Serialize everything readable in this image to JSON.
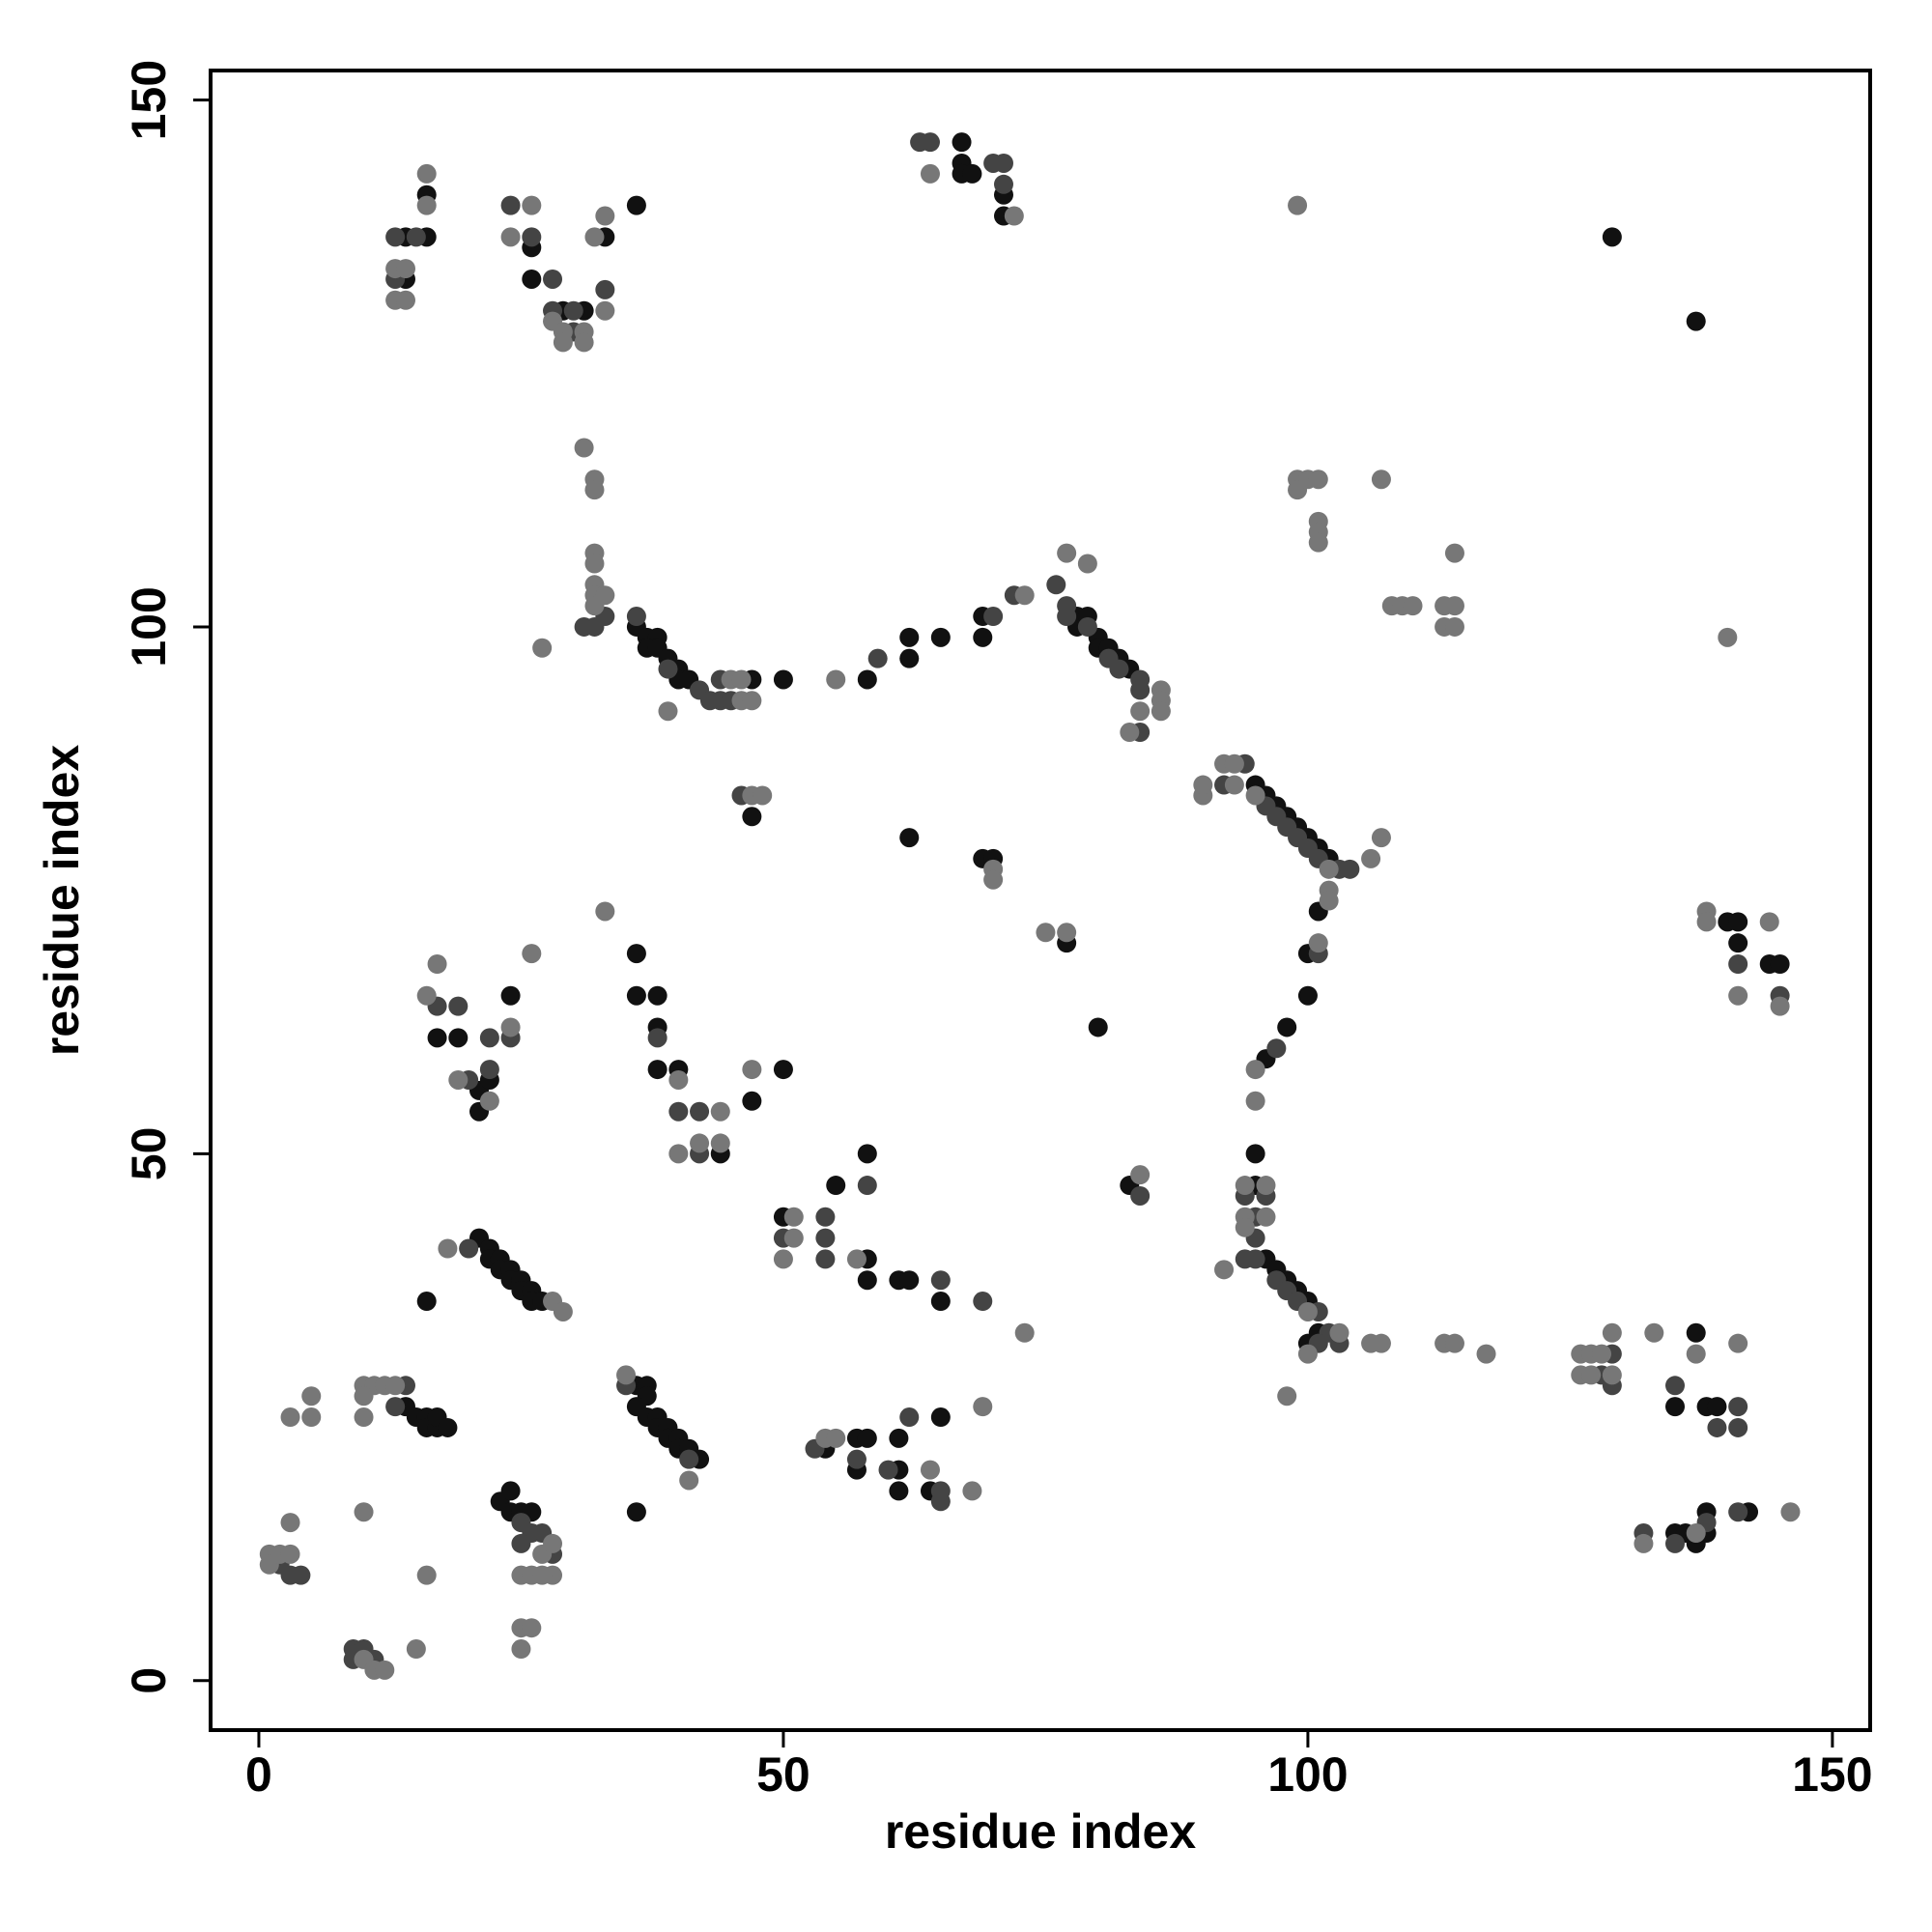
{
  "chart_data": {
    "type": "scatter",
    "xlabel": "residue index",
    "ylabel": "residue index",
    "xlim": [
      -4.6,
      153.6
    ],
    "ylim": [
      -4.7,
      152.8
    ],
    "xticks": [
      0,
      50,
      100,
      150
    ],
    "yticks": [
      0,
      50,
      100,
      150
    ],
    "grid": false,
    "series": [
      {
        "color": "#111111",
        "x": [
          14,
          15,
          16,
          16,
          17,
          17,
          18,
          23,
          24,
          24,
          25,
          26,
          21,
          22,
          22,
          23,
          23,
          24,
          24,
          25,
          25,
          26,
          26,
          27,
          16,
          36,
          37,
          37,
          36,
          37,
          38,
          38,
          39,
          39,
          40,
          40,
          41,
          42,
          36,
          17,
          19,
          21,
          21,
          22,
          24,
          36,
          36,
          38,
          38,
          38,
          40,
          44,
          47,
          50,
          36,
          37,
          38,
          37,
          38,
          39,
          40,
          40,
          41,
          47,
          50,
          47,
          58,
          62,
          62,
          65,
          69,
          69,
          78,
          78,
          79,
          80,
          80,
          81,
          82,
          83,
          62,
          69,
          70,
          77,
          80,
          95,
          96,
          97,
          98,
          99,
          100,
          101,
          102,
          101,
          100,
          100,
          98,
          96,
          95,
          95,
          96,
          97,
          98,
          99,
          100,
          100,
          101,
          83,
          50,
          55,
          58,
          58,
          58,
          61,
          62,
          65,
          54,
          57,
          58,
          57,
          61,
          61,
          61,
          65,
          64,
          129,
          137,
          140,
          141,
          141,
          144,
          145,
          137,
          135,
          138,
          139,
          135,
          136,
          137,
          138,
          138,
          142,
          67,
          67,
          67,
          68,
          71,
          71,
          16,
          16,
          14,
          14,
          26,
          26,
          33,
          36,
          29,
          31
        ],
        "y": [
          26,
          25,
          25,
          24,
          24,
          25,
          24,
          17,
          18,
          16,
          16,
          16,
          42,
          41,
          40,
          40,
          39,
          39,
          38,
          38,
          37,
          37,
          36,
          36,
          36,
          28,
          28,
          27,
          26,
          25,
          25,
          24,
          24,
          23,
          23,
          22,
          22,
          21,
          16,
          61,
          61,
          56,
          54,
          57,
          65,
          69,
          65,
          65,
          62,
          58,
          58,
          50,
          55,
          58,
          100,
          99,
          99,
          98,
          98,
          97,
          96,
          95,
          95,
          95,
          95,
          82,
          95,
          97,
          99,
          99,
          99,
          101,
          101,
          100,
          101,
          99,
          98,
          98,
          97,
          96,
          80,
          78,
          78,
          70,
          62,
          85,
          84,
          83,
          82,
          81,
          80,
          79,
          78,
          73,
          69,
          65,
          62,
          59,
          50,
          47,
          40,
          39,
          38,
          37,
          36,
          32,
          33,
          47,
          44,
          47,
          40,
          38,
          50,
          38,
          38,
          36,
          22,
          23,
          23,
          20,
          20,
          18,
          23,
          25,
          18,
          137,
          129,
          72,
          72,
          70,
          68,
          68,
          33,
          26,
          26,
          26,
          14,
          14,
          13,
          14,
          16,
          16,
          146,
          144,
          143,
          143,
          141,
          139,
          141,
          137,
          137,
          133,
          136,
          133,
          137,
          140,
          130,
          130
        ]
      },
      {
        "color": "#444444",
        "x": [
          2,
          3,
          4,
          9,
          9,
          10,
          11,
          13,
          14,
          25,
          26,
          25,
          27,
          20,
          22,
          22,
          19,
          17,
          20,
          24,
          38,
          40,
          42,
          42,
          41,
          35,
          36,
          39,
          42,
          43,
          44,
          45,
          44,
          46,
          59,
          72,
          76,
          77,
          77,
          79,
          81,
          82,
          84,
          84,
          84,
          70,
          94,
          92,
          96,
          97,
          98,
          99,
          100,
          101,
          103,
          104,
          101,
          97,
          94,
          96,
          95,
          95,
          94,
          95,
          97,
          98,
          99,
          101,
          102,
          103,
          84,
          54,
          54,
          54,
          50,
          58,
          65,
          69,
          53,
          57,
          60,
          62,
          65,
          65,
          128,
          129,
          129,
          135,
          139,
          141,
          141,
          132,
          135,
          138,
          141,
          145,
          141,
          63,
          64,
          70,
          71,
          71,
          13,
          13,
          15,
          24,
          26,
          28,
          33,
          28,
          30,
          30,
          32,
          33,
          31,
          28,
          101
        ],
        "y": [
          11,
          10,
          10,
          2,
          3,
          3,
          2,
          26,
          28,
          15,
          14,
          13,
          14,
          41,
          61,
          58,
          64,
          64,
          57,
          61,
          61,
          54,
          54,
          50,
          21,
          28,
          101,
          96,
          94,
          93,
          93,
          93,
          95,
          84,
          97,
          103,
          104,
          102,
          101,
          100,
          97,
          96,
          95,
          94,
          90,
          101,
          87,
          85,
          83,
          82,
          81,
          80,
          79,
          78,
          77,
          77,
          69,
          60,
          46,
          46,
          44,
          42,
          40,
          40,
          38,
          37,
          36,
          35,
          33,
          32,
          46,
          44,
          42,
          40,
          42,
          47,
          38,
          36,
          22,
          21,
          20,
          25,
          18,
          17,
          29,
          28,
          31,
          28,
          24,
          26,
          24,
          14,
          13,
          15,
          16,
          65,
          68,
          146,
          146,
          144,
          144,
          142,
          133,
          137,
          137,
          140,
          137,
          133,
          132,
          130,
          130,
          128,
          100,
          101,
          100,
          12,
          32
        ]
      },
      {
        "color": "#777777",
        "x": [
          1,
          1,
          2,
          3,
          3,
          3,
          5,
          5,
          10,
          11,
          12,
          15,
          16,
          10,
          10,
          11,
          12,
          13,
          10,
          10,
          27,
          28,
          28,
          25,
          26,
          27,
          25,
          26,
          25,
          18,
          28,
          29,
          35,
          41,
          17,
          16,
          19,
          22,
          24,
          26,
          40,
          40,
          42,
          44,
          44,
          47,
          33,
          16,
          13,
          14,
          13,
          14,
          24,
          32,
          33,
          33,
          28,
          29,
          31,
          29,
          31,
          31,
          32,
          32,
          32,
          32,
          32,
          32,
          33,
          32,
          27,
          39,
          46,
          47,
          45,
          46,
          47,
          48,
          55,
          73,
          79,
          77,
          84,
          83,
          86,
          86,
          86,
          70,
          70,
          75,
          77,
          90,
          90,
          92,
          93,
          93,
          95,
          102,
          106,
          107,
          102,
          102,
          101,
          95,
          95,
          94,
          96,
          94,
          94,
          96,
          92,
          100,
          100,
          103,
          106,
          107,
          113,
          114,
          117,
          98,
          84,
          51,
          51,
          50,
          57,
          73,
          69,
          54,
          55,
          64,
          68,
          99,
          99,
          99,
          100,
          101,
          101,
          101,
          101,
          107,
          108,
          109,
          110,
          113,
          113,
          114,
          114,
          114,
          140,
          138,
          138,
          141,
          144,
          145,
          126,
          127,
          128,
          126,
          127,
          129,
          129,
          133,
          141,
          137,
          132,
          137,
          146,
          64,
          72,
          16,
          26
        ],
        "y": [
          12,
          11,
          12,
          12,
          15,
          25,
          25,
          27,
          2,
          1,
          1,
          3,
          10,
          16,
          28,
          28,
          28,
          28,
          27,
          25,
          12,
          13,
          10,
          10,
          10,
          10,
          5,
          5,
          3,
          41,
          36,
          35,
          29,
          19,
          68,
          65,
          57,
          55,
          62,
          69,
          57,
          50,
          51,
          51,
          54,
          58,
          73,
          143,
          134,
          134,
          131,
          131,
          137,
          137,
          139,
          130,
          129,
          128,
          128,
          127,
          127,
          117,
          114,
          113,
          107,
          106,
          104,
          103,
          103,
          102,
          98,
          92,
          93,
          93,
          95,
          95,
          84,
          84,
          95,
          103,
          106,
          107,
          92,
          90,
          94,
          93,
          92,
          77,
          76,
          71,
          71,
          84,
          85,
          87,
          87,
          85,
          84,
          77,
          78,
          80,
          75,
          74,
          70,
          58,
          55,
          47,
          47,
          44,
          43,
          44,
          39,
          35,
          31,
          33,
          32,
          32,
          32,
          32,
          31,
          27,
          48,
          44,
          42,
          40,
          40,
          33,
          26,
          23,
          23,
          20,
          18,
          140,
          114,
          113,
          114,
          114,
          110,
          109,
          108,
          114,
          102,
          102,
          102,
          102,
          100,
          102,
          100,
          107,
          99,
          73,
          72,
          65,
          72,
          64,
          31,
          31,
          31,
          29,
          29,
          29,
          33,
          33,
          32,
          31,
          13,
          14,
          16,
          143,
          139,
          140,
          140
        ]
      }
    ]
  }
}
